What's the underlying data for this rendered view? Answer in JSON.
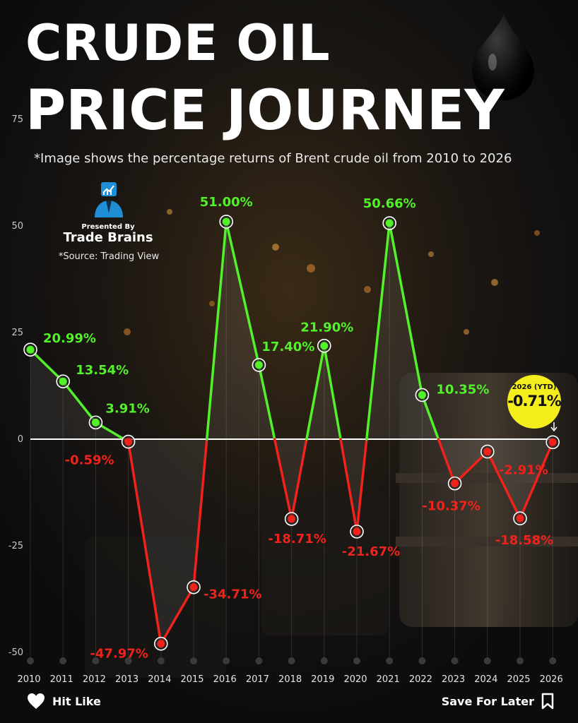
{
  "header": {
    "title_line1": "CRUDE OIL",
    "title_line2": "PRICE JOURNEY",
    "subtitle": "*Image shows the percentage returns of Brent crude oil from 2010 to 2026"
  },
  "branding": {
    "presented_by": "Presented By",
    "name": "Trade Brains",
    "source": "*Source: Trading View"
  },
  "callout": {
    "label": "2026 (YTD)",
    "value": "-0.71%"
  },
  "footer": {
    "like_label": "Hit Like",
    "save_label": "Save For Later"
  },
  "colors": {
    "positive": "#52f12a",
    "negative": "#f0221c",
    "callout": "#f4ee1c",
    "zero_line": "#ffffff"
  },
  "chart_data": {
    "type": "line",
    "x": [
      "2010",
      "2011",
      "2012",
      "2013",
      "2014",
      "2015",
      "2016",
      "2017",
      "2018",
      "2019",
      "2020",
      "2021",
      "2022",
      "2023",
      "2024",
      "2025",
      "2026"
    ],
    "values": [
      20.99,
      13.54,
      3.91,
      -0.59,
      -47.97,
      -34.71,
      51.0,
      17.4,
      -18.71,
      21.9,
      -21.67,
      50.66,
      10.35,
      -10.37,
      -2.91,
      -18.58,
      -0.71
    ],
    "labels": [
      "20.99%",
      "13.54%",
      "3.91%",
      "-0.59%",
      "-47.97%",
      "-34.71%",
      "51.00%",
      "17.40%",
      "-18.71%",
      "21.90%",
      "-21.67%",
      "50.66%",
      "10.35%",
      "-10.37%",
      "-2.91%",
      "-18.58%",
      ""
    ],
    "yticks": [
      75,
      50,
      25,
      0,
      -25,
      -50
    ],
    "ylim": [
      -50,
      75
    ],
    "grid": false
  }
}
